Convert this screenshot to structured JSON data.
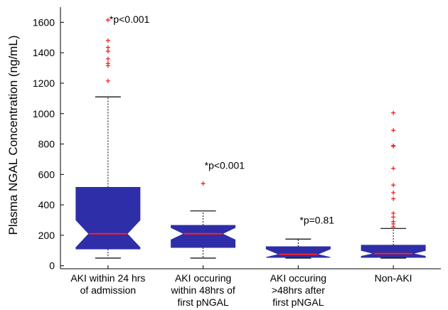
{
  "chart_data": {
    "type": "boxplot",
    "ylabel": "Plasma NGAL Concentration (ng/mL)",
    "ylim": [
      -20,
      1700
    ],
    "yticks": [
      0,
      200,
      400,
      600,
      800,
      1000,
      1200,
      1400,
      1600
    ],
    "grid": false,
    "notched": true,
    "colors": {
      "box": "#2e2ea8",
      "median": "#ff2020",
      "outlier": "#ff2020",
      "whisker": "#000000"
    },
    "categories": [
      [
        "AKI within 24 hrs",
        "of admission"
      ],
      [
        "AKI occuring",
        "within 48hrs of",
        "first pNGAL"
      ],
      [
        "AKI occuring",
        ">48hrs after",
        "first pNGAL"
      ],
      [
        "Non-AKI"
      ]
    ],
    "boxes": [
      {
        "whisker_low": 50,
        "q1": 110,
        "median": 210,
        "q3": 515,
        "whisker_high": 1110,
        "notch_low": 120,
        "notch_high": 300,
        "outliers": [
          1215,
          1315,
          1330,
          1360,
          1410,
          1435,
          1480,
          1615
        ]
      },
      {
        "whisker_low": 50,
        "q1": 120,
        "median": 210,
        "q3": 265,
        "whisker_high": 360,
        "notch_low": 170,
        "notch_high": 250,
        "outliers": [
          540
        ]
      },
      {
        "whisker_low": 50,
        "q1": 55,
        "median": 75,
        "q3": 125,
        "whisker_high": 175,
        "notch_low": 55,
        "notch_high": 110,
        "outliers": []
      },
      {
        "whisker_low": 50,
        "q1": 55,
        "median": 80,
        "q3": 135,
        "whisker_high": 245,
        "notch_low": 62,
        "notch_high": 100,
        "outliers": [
          255,
          275,
          290,
          320,
          345,
          440,
          480,
          530,
          640,
          785,
          790,
          890,
          1005
        ]
      }
    ],
    "annotations": [
      {
        "text": "*p<0.001",
        "box": 0,
        "y": 1620
      },
      {
        "text": "*p<0.001",
        "box": 1,
        "y": 660
      },
      {
        "text": "*p=0.81",
        "box": 2,
        "y": 300
      }
    ]
  }
}
